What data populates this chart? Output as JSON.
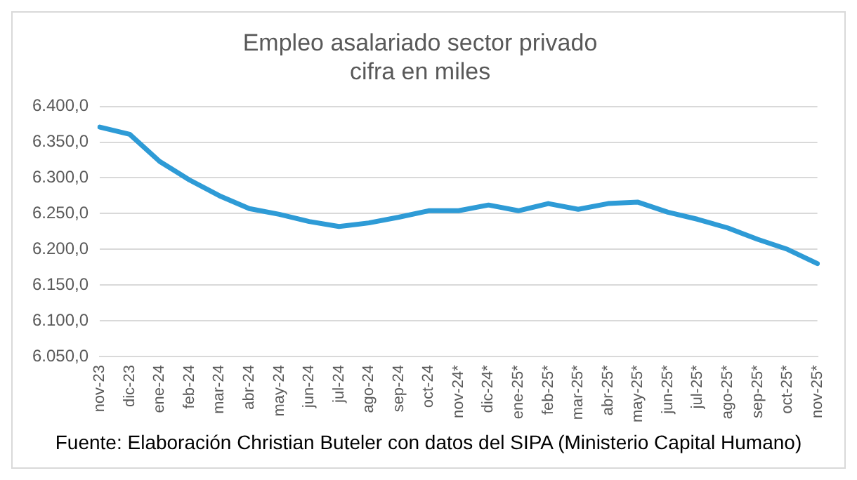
{
  "chart_data": {
    "type": "line",
    "title": "Empleo asalariado sector privado\ncifra en miles",
    "categories": [
      "nov-23",
      "dic-23",
      "ene-24",
      "feb-24",
      "mar-24",
      "abr-24",
      "may-24",
      "jun-24",
      "jul-24",
      "ago-24",
      "sep-24",
      "oct-24",
      "nov-24*",
      "dic-24*",
      "ene-25*",
      "feb-25*",
      "mar-25*",
      "abr-25*",
      "may-25*",
      "jun-25*",
      "jul-25*",
      "ago-25*",
      "sep-25*",
      "oct-25*",
      "nov-25*"
    ],
    "series": [
      {
        "color": "#2e9bd6",
        "values": [
          6371,
          6361,
          6323,
          6297,
          6275,
          6257,
          6249,
          6239,
          6232,
          6237,
          6245,
          6254,
          6254,
          6262,
          6254,
          6264,
          6256,
          6264,
          6266,
          6252,
          6242,
          6230,
          6214,
          6200,
          6180
        ]
      }
    ],
    "ylim": [
      6050,
      6400
    ],
    "yticks": [
      {
        "value": 6050,
        "label": "6.050,0"
      },
      {
        "value": 6100,
        "label": "6.100,0"
      },
      {
        "value": 6150,
        "label": "6.150,0"
      },
      {
        "value": 6200,
        "label": "6.200,0"
      },
      {
        "value": 6250,
        "label": "6.250,0"
      },
      {
        "value": 6300,
        "label": "6.300,0"
      },
      {
        "value": 6350,
        "label": "6.350,0"
      },
      {
        "value": 6400,
        "label": "6.400,0"
      }
    ],
    "grid": "y",
    "legend": false,
    "marker": "none",
    "line_style": "solid",
    "annotations": [
      "Fuente: Elaboración Christian Buteler con datos del SIPA (Ministerio Capital Humano)"
    ]
  }
}
